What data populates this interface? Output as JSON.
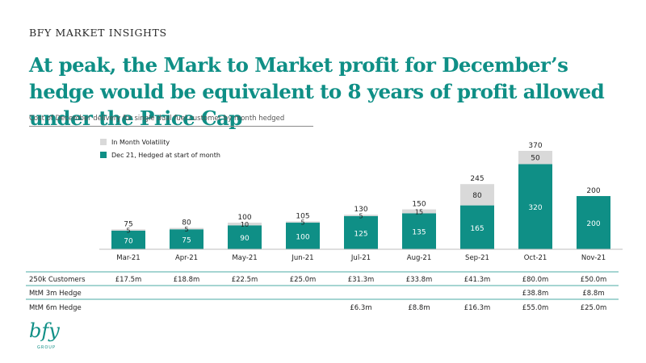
{
  "header": {
    "brand": "BFY MARKET INSIGHTS",
    "title": "At peak, the Mark to Market profit for December’s hedge would be equivalent to 8 years of profit allowed under the Price Cap",
    "subtitle": "Cost of December delivery for single dual fuel customer by month hedged"
  },
  "colors": {
    "hedged": "#0f8f86",
    "volatility": "#d9d9d9",
    "title": "#0f8f86",
    "rule": "#0f8f86"
  },
  "chart_data": {
    "type": "bar",
    "stacked": true,
    "categories": [
      "Mar-21",
      "Apr-21",
      "May-21",
      "Jun-21",
      "Jul-21",
      "Aug-21",
      "Sep-21",
      "Oct-21",
      "Nov-21"
    ],
    "series": [
      {
        "name": "Dec 21, Hedged at start of month",
        "values": [
          70,
          75,
          90,
          100,
          125,
          135,
          165,
          320,
          200
        ]
      },
      {
        "name": "In Month Volatility",
        "values": [
          5,
          5,
          10,
          5,
          5,
          15,
          80,
          50,
          null
        ]
      }
    ],
    "totals": [
      75,
      80,
      100,
      105,
      130,
      150,
      245,
      370,
      200
    ],
    "ylim": [
      0,
      370
    ],
    "legend_placement": "top-left",
    "grid": false
  },
  "table": {
    "rows": [
      {
        "label": "250k Customers",
        "values": [
          "£17.5m",
          "£18.8m",
          "£22.5m",
          "£25.0m",
          "£31.3m",
          "£33.8m",
          "£41.3m",
          "£80.0m",
          "£50.0m"
        ]
      },
      {
        "label": "MtM 3m Hedge",
        "values": [
          "",
          "",
          "",
          "",
          "",
          "",
          "",
          "£38.8m",
          "£8.8m"
        ]
      },
      {
        "label": "MtM 6m Hedge",
        "values": [
          "",
          "",
          "",
          "",
          "£6.3m",
          "£8.8m",
          "£16.3m",
          "£55.0m",
          "£25.0m"
        ]
      }
    ]
  },
  "logo": {
    "mark": "bfy",
    "sub": "GROUP"
  }
}
